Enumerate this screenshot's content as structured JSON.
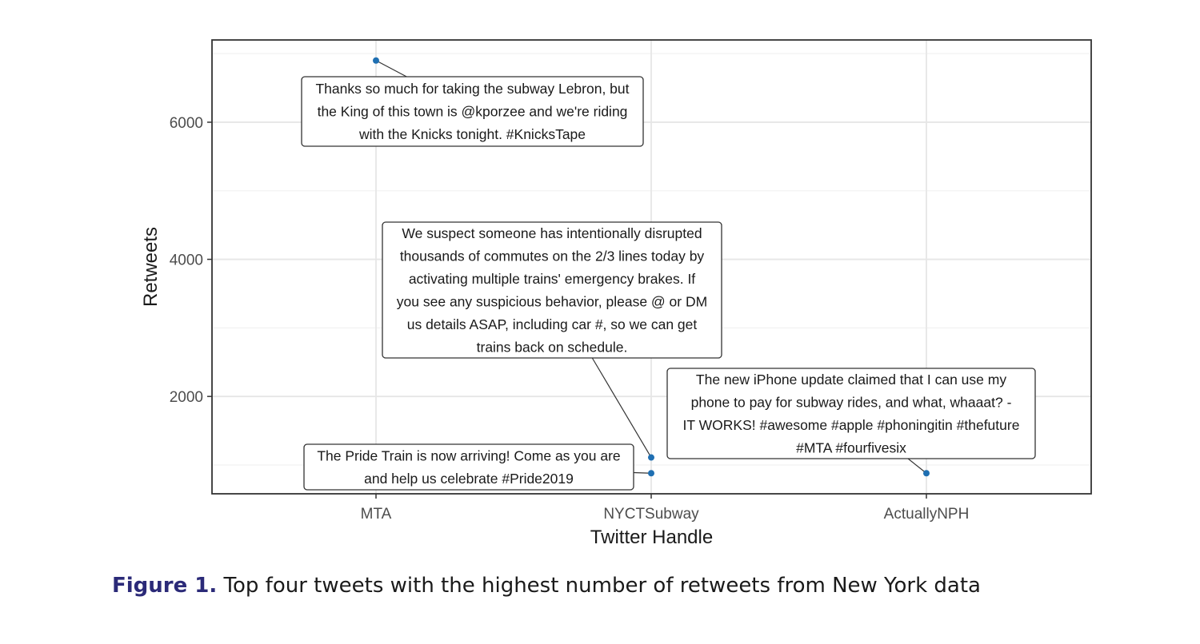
{
  "chart_data": {
    "type": "scatter",
    "title": "",
    "xlabel": "Twitter Handle",
    "ylabel": "Retweets",
    "categories": [
      "MTA",
      "NYCTSubway",
      "ActuallyNPH"
    ],
    "ylim": [
      580,
      7200
    ],
    "yticks": [
      2000,
      4000,
      6000
    ],
    "grid": true,
    "point_color": "#1f6fb2",
    "points": [
      {
        "x": "MTA",
        "y": 6900,
        "annotation": [
          "Thanks so much for taking the subway Lebron, but",
          "the King of this town is @kporzee and we're riding",
          "with the Knicks tonight. #KnicksTape"
        ]
      },
      {
        "x": "NYCTSubway",
        "y": 1110,
        "annotation": [
          "We suspect someone has intentionally disrupted",
          "thousands of commutes on the 2/3 lines today by",
          "activating multiple trains' emergency brakes. If",
          "you see any suspicious behavior, please @ or DM",
          "us details ASAP, including car #, so we can get",
          "trains back on schedule."
        ]
      },
      {
        "x": "NYCTSubway",
        "y": 880,
        "annotation": [
          "The Pride Train is now arriving! Come as you are",
          "and help us celebrate #Pride2019"
        ]
      },
      {
        "x": "ActuallyNPH",
        "y": 880,
        "annotation": [
          "The new iPhone update claimed that I can use my",
          "phone to pay for subway rides, and what, whaaat? -",
          "IT WORKS! #awesome #apple #phoningitin #thefuture",
          "#MTA #fourfivesix"
        ]
      }
    ]
  },
  "caption": {
    "label": "Figure 1.",
    "text": " Top four tweets with the highest number of retweets from New York data"
  }
}
